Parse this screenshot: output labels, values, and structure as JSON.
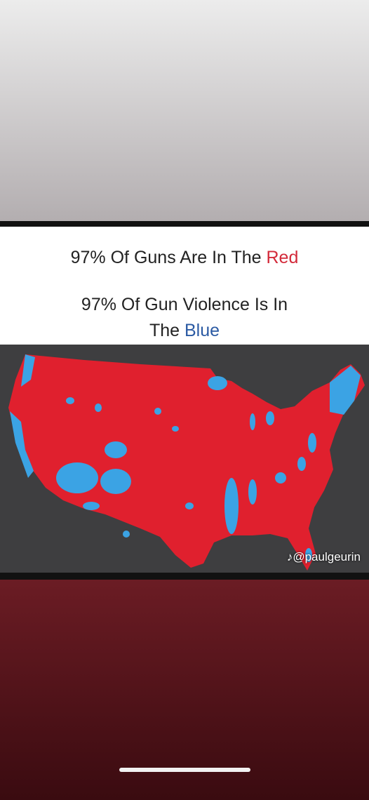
{
  "post": {
    "line1": "97% Of Guns Are In The ",
    "line1_highlight": "Red",
    "line2": "97% Of Gun Violence Is In",
    "line3": "The ",
    "line3_highlight": "Blue",
    "watermark": "@paulgeurin"
  }
}
